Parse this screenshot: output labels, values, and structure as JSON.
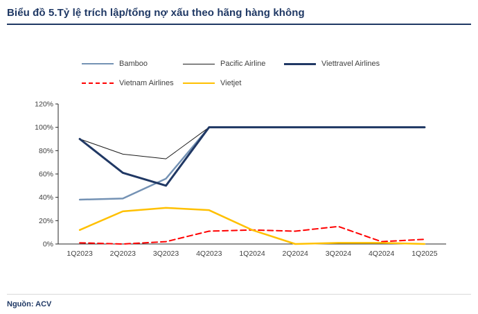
{
  "page": {
    "title": "Biểu đồ 5.Tỷ lệ trích lập/tổng nợ xấu theo hãng hàng không",
    "source": "Nguồn: ACV"
  },
  "chart_data": {
    "type": "line",
    "title": "Biểu đồ 5.Tỷ lệ trích lập/tổng nợ xấu theo hãng hàng không",
    "categories": [
      "1Q2023",
      "2Q2023",
      "3Q2023",
      "4Q2023",
      "1Q2024",
      "2Q2024",
      "3Q2024",
      "4Q2024",
      "1Q2025"
    ],
    "series": [
      {
        "name": "Bamboo",
        "color": "#7492b4",
        "line_style": "solid",
        "width": 2.5,
        "values": [
          38,
          39,
          56,
          100,
          100,
          100,
          100,
          100,
          100
        ]
      },
      {
        "name": "Pacific Airline",
        "color": "#1a1a1a",
        "line_style": "solid",
        "width": 1,
        "values": [
          90,
          77,
          73,
          100,
          100,
          100,
          100,
          100,
          100
        ]
      },
      {
        "name": "Viettravel Airlines",
        "color": "#203864",
        "line_style": "solid",
        "width": 3,
        "values": [
          90,
          61,
          50,
          100,
          100,
          100,
          100,
          100,
          100
        ]
      },
      {
        "name": "Vietnam Airlines",
        "color": "#ff0000",
        "line_style": "dashed",
        "width": 2,
        "values": [
          1,
          0,
          2,
          11,
          12,
          11,
          15,
          2,
          4
        ]
      },
      {
        "name": "Vietjet",
        "color": "#ffc000",
        "line_style": "solid",
        "width": 2.5,
        "values": [
          12,
          28,
          31,
          29,
          12,
          0,
          1,
          1,
          0
        ]
      }
    ],
    "xlabel": "",
    "ylabel": "",
    "ylim": [
      0,
      120
    ],
    "yticks": [
      "0%",
      "20%",
      "40%",
      "60%",
      "80%",
      "100%",
      "120%"
    ],
    "grid": false,
    "legend_position": "top"
  }
}
